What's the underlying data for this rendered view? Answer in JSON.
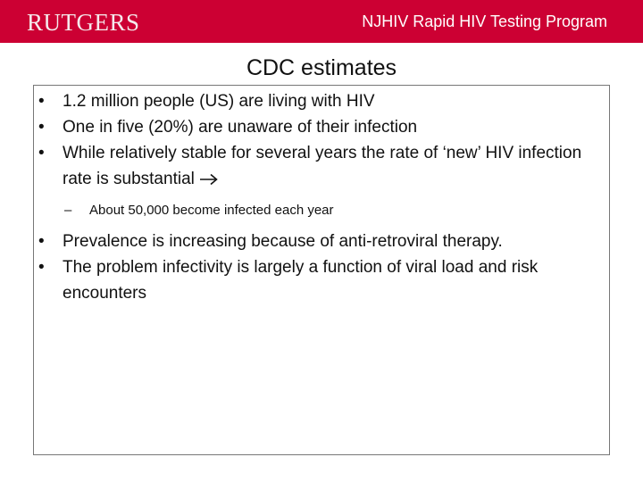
{
  "header": {
    "logo_text": "RUTGERS",
    "program_title": "NJHIV Rapid HIV Testing Program",
    "color": "#cc0033"
  },
  "slide": {
    "title": "CDC estimates",
    "bullets": [
      "1.2 million people (US) are living with HIV",
      "One in five (20%) are unaware of their infection",
      "While relatively stable for several years the rate of ‘new’ HIV infection rate is substantial"
    ],
    "sub_bullet": "About 50,000 become infected each year",
    "bullets_2": [
      "Prevalence is increasing because of anti-retroviral therapy.",
      "The problem infectivity is largely a function of viral load and risk encounters"
    ],
    "bullet_marker": "•",
    "sub_marker": "–",
    "arrow_icon": "right-arrow-icon"
  }
}
